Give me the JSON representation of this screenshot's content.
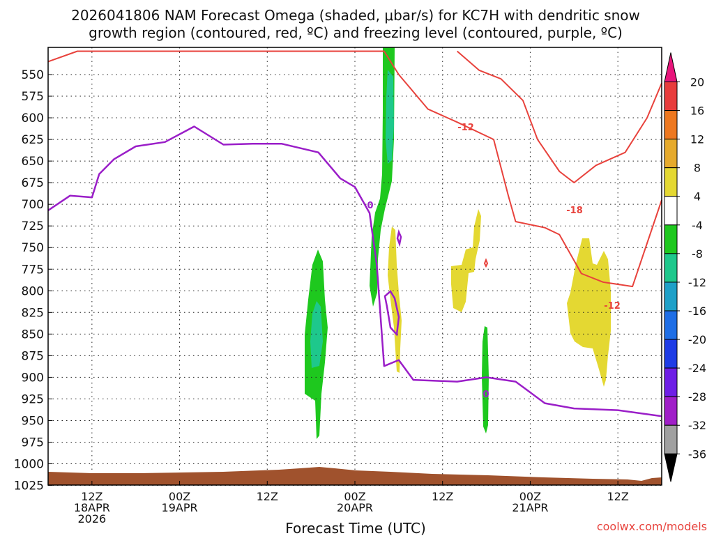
{
  "chart_data": {
    "type": "heatmap",
    "title_line1": "2026041806 NAM Forecast Omega (shaded, μbar/s) for KC7H with dendritic snow",
    "title_line2": "growth region (contoured, red, ºC) and freezing level (contoured, purple, ºC)",
    "xlabel": "Forecast Time (UTC)",
    "ylabel": "",
    "credit": "coolwx.com/models",
    "y_ticks": [
      "550",
      "575",
      "600",
      "625",
      "650",
      "675",
      "700",
      "725",
      "750",
      "775",
      "800",
      "825",
      "850",
      "875",
      "900",
      "925",
      "950",
      "975",
      "1000",
      "1025"
    ],
    "y_range": [
      525,
      1030
    ],
    "x_range_hours_from_init": [
      0,
      84
    ],
    "x_ticks": [
      {
        "hour": 6,
        "lines": [
          "12Z",
          "18APR",
          "2026"
        ]
      },
      {
        "hour": 18,
        "lines": [
          "00Z",
          "19APR"
        ]
      },
      {
        "hour": 30,
        "lines": [
          "12Z"
        ]
      },
      {
        "hour": 42,
        "lines": [
          "00Z",
          "20APR"
        ]
      },
      {
        "hour": 54,
        "lines": [
          "12Z"
        ]
      },
      {
        "hour": 66,
        "lines": [
          "00Z",
          "21APR"
        ]
      },
      {
        "hour": 78,
        "lines": [
          "12Z"
        ]
      }
    ],
    "colorbar": {
      "labels": [
        "20",
        "16",
        "12",
        "8",
        "4",
        "-4",
        "-8",
        "-12",
        "-16",
        "-20",
        "-24",
        "-28",
        "-32",
        "-36"
      ],
      "colors": [
        "#e8157b",
        "#e83c3c",
        "#ee7820",
        "#e6aa2c",
        "#e4d832",
        "#ffffff",
        "#1ec81e",
        "#1ec88c",
        "#1ea0c8",
        "#1e6ee6",
        "#1e3ce6",
        "#6e1ee6",
        "#a01ec8",
        "#a0a0a0",
        "#000000"
      ]
    },
    "series": [
      {
        "name": "Omega",
        "kind": "shaded",
        "colors": {
          "-4": "#1ec81e",
          "-8": "#1ec88c",
          "4": "#e4d832"
        }
      },
      {
        "name": "dendritic snow growth region",
        "kind": "contour",
        "color": "#e8423c",
        "labels": [
          "-12",
          "-18",
          "-12"
        ]
      },
      {
        "name": "freezing level",
        "kind": "contour",
        "color": "#9a1ec8",
        "labels": [
          "0",
          "0"
        ]
      }
    ],
    "freezing_level_0C": [
      {
        "h": 0,
        "p": 707
      },
      {
        "h": 3,
        "p": 690
      },
      {
        "h": 6,
        "p": 692
      },
      {
        "h": 7,
        "p": 665
      },
      {
        "h": 9,
        "p": 648
      },
      {
        "h": 12,
        "p": 633
      },
      {
        "h": 16,
        "p": 628
      },
      {
        "h": 20,
        "p": 610
      },
      {
        "h": 24,
        "p": 631
      },
      {
        "h": 28,
        "p": 630
      },
      {
        "h": 32,
        "p": 630
      },
      {
        "h": 37,
        "p": 640
      },
      {
        "h": 40,
        "p": 670
      },
      {
        "h": 42,
        "p": 680
      },
      {
        "h": 44,
        "p": 710
      },
      {
        "h": 45,
        "p": 770
      },
      {
        "h": 46,
        "p": 887
      },
      {
        "h": 48,
        "p": 880
      },
      {
        "h": 50,
        "p": 903
      },
      {
        "h": 56,
        "p": 905
      },
      {
        "h": 60,
        "p": 900
      },
      {
        "h": 64,
        "p": 905
      },
      {
        "h": 68,
        "p": 930
      },
      {
        "h": 72,
        "p": 936
      },
      {
        "h": 78,
        "p": 938
      },
      {
        "h": 84,
        "p": 945
      }
    ],
    "snow_growth_minus12C": [
      {
        "h": 0,
        "p": 535
      },
      {
        "h": 4,
        "p": 523
      },
      {
        "h": 46,
        "p": 523
      },
      {
        "h": 48,
        "p": 550
      },
      {
        "h": 52,
        "p": 590
      },
      {
        "h": 56,
        "p": 605
      },
      {
        "h": 61,
        "p": 625
      },
      {
        "h": 63,
        "p": 690
      },
      {
        "h": 64,
        "p": 720
      },
      {
        "h": 68,
        "p": 727
      },
      {
        "h": 70,
        "p": 735
      },
      {
        "h": 73,
        "p": 780
      },
      {
        "h": 76,
        "p": 790
      },
      {
        "h": 80,
        "p": 795
      },
      {
        "h": 83,
        "p": 720
      },
      {
        "h": 84,
        "p": 695
      }
    ],
    "snow_growth_minus18C": [
      {
        "h": 56,
        "p": 523
      },
      {
        "h": 59,
        "p": 545
      },
      {
        "h": 62,
        "p": 555
      },
      {
        "h": 65,
        "p": 580
      },
      {
        "h": 67,
        "p": 625
      },
      {
        "h": 70,
        "p": 662
      },
      {
        "h": 72,
        "p": 675
      },
      {
        "h": 75,
        "p": 655
      },
      {
        "h": 79,
        "p": 640
      },
      {
        "h": 82,
        "p": 600
      },
      {
        "h": 84,
        "p": 560
      }
    ]
  }
}
